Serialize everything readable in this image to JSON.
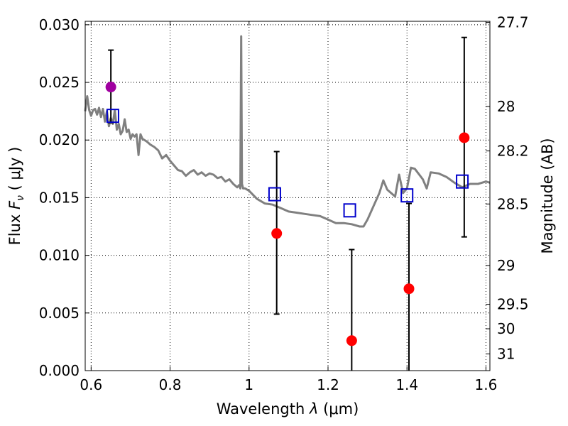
{
  "chart_data": {
    "type": "scatter",
    "xlabel_prefix": "Wavelength ",
    "xlabel_symbol": "λ",
    "xlabel_unit": " (μm)",
    "ylabel_prefix": "Flux ",
    "ylabel_symbol": "F",
    "ylabel_sub": "ν",
    "ylabel_unit": " ( μJy )",
    "y2label": "Magnitude (AB)",
    "xlim": [
      0.585,
      1.61
    ],
    "ylim": [
      0.0,
      0.0303
    ],
    "grid": true,
    "x_ticks": [
      0.6,
      0.8,
      1.0,
      1.2,
      1.4,
      1.6
    ],
    "x_tick_labels": [
      "0.6",
      "0.8",
      "1",
      "1.2",
      "1.4",
      "1.6"
    ],
    "y_ticks": [
      0.0,
      0.005,
      0.01,
      0.015,
      0.02,
      0.025,
      0.03
    ],
    "y_tick_labels": [
      "0.000",
      "0.005",
      "0.010",
      "0.015",
      "0.020",
      "0.025",
      "0.030"
    ],
    "magnitude_ticks": [
      "27.7",
      "28",
      "28.2",
      "28.5",
      "29",
      "29.5",
      "30",
      "31"
    ],
    "colors": {
      "spectrum": "#808080",
      "observed": "#ff0000",
      "observed_optical": "#a000a0",
      "model": "#0000cc",
      "errorbar": "#000000"
    },
    "series": [
      {
        "name": "observed-photometry",
        "x": [
          0.65,
          1.07,
          1.26,
          1.405,
          1.545
        ],
        "y": [
          0.0246,
          0.0119,
          0.0026,
          0.0071,
          0.0202
        ],
        "yerr_low": [
          0.0215,
          0.0049,
          0.0,
          0.0,
          0.0116
        ],
        "yerr_high": [
          0.0278,
          0.019,
          0.0105,
          0.0145,
          0.0289
        ],
        "colors": [
          "#a000a0",
          "#ff0000",
          "#ff0000",
          "#ff0000",
          "#ff0000"
        ]
      },
      {
        "name": "model-photometry",
        "x": [
          0.655,
          1.065,
          1.255,
          1.4,
          1.54
        ],
        "y": [
          0.0221,
          0.0153,
          0.0139,
          0.0152,
          0.0164
        ]
      },
      {
        "name": "model-spectrum",
        "x": [
          0.585,
          0.59,
          0.595,
          0.6,
          0.605,
          0.61,
          0.615,
          0.62,
          0.625,
          0.63,
          0.635,
          0.64,
          0.645,
          0.65,
          0.655,
          0.66,
          0.665,
          0.67,
          0.675,
          0.68,
          0.685,
          0.69,
          0.695,
          0.7,
          0.705,
          0.71,
          0.715,
          0.72,
          0.725,
          0.73,
          0.74,
          0.75,
          0.76,
          0.77,
          0.78,
          0.79,
          0.8,
          0.81,
          0.82,
          0.83,
          0.84,
          0.85,
          0.86,
          0.87,
          0.88,
          0.89,
          0.9,
          0.91,
          0.92,
          0.93,
          0.94,
          0.95,
          0.96,
          0.97,
          0.975,
          0.978,
          0.98,
          0.982,
          0.985,
          0.99,
          1.0,
          1.02,
          1.04,
          1.06,
          1.08,
          1.1,
          1.12,
          1.14,
          1.16,
          1.18,
          1.2,
          1.22,
          1.24,
          1.26,
          1.28,
          1.29,
          1.3,
          1.33,
          1.34,
          1.35,
          1.37,
          1.38,
          1.39,
          1.4,
          1.41,
          1.42,
          1.44,
          1.45,
          1.46,
          1.48,
          1.5,
          1.52,
          1.54,
          1.56,
          1.58,
          1.6,
          1.61
        ],
        "y": [
          0.0225,
          0.0238,
          0.0226,
          0.0221,
          0.0226,
          0.0227,
          0.0222,
          0.0228,
          0.022,
          0.0227,
          0.0216,
          0.0225,
          0.0212,
          0.0219,
          0.0214,
          0.0226,
          0.0209,
          0.0214,
          0.0205,
          0.0208,
          0.0218,
          0.0207,
          0.0209,
          0.0201,
          0.0205,
          0.0203,
          0.0205,
          0.0187,
          0.0205,
          0.0201,
          0.0199,
          0.0196,
          0.0194,
          0.0191,
          0.0184,
          0.0187,
          0.0182,
          0.0178,
          0.0174,
          0.0173,
          0.0169,
          0.0172,
          0.0174,
          0.017,
          0.0172,
          0.0169,
          0.0171,
          0.017,
          0.0167,
          0.0168,
          0.0164,
          0.0166,
          0.0162,
          0.0159,
          0.0161,
          0.0158,
          0.029,
          0.0162,
          0.0158,
          0.0158,
          0.0156,
          0.0149,
          0.0145,
          0.0144,
          0.0141,
          0.0138,
          0.0137,
          0.0136,
          0.0135,
          0.0134,
          0.0131,
          0.0128,
          0.0128,
          0.0127,
          0.0125,
          0.0125,
          0.0131,
          0.0154,
          0.0165,
          0.0157,
          0.0151,
          0.017,
          0.0154,
          0.0158,
          0.0176,
          0.0175,
          0.0166,
          0.0158,
          0.0172,
          0.0171,
          0.0168,
          0.0163,
          0.0159,
          0.0162,
          0.0162,
          0.0164,
          0.0163
        ]
      }
    ]
  }
}
